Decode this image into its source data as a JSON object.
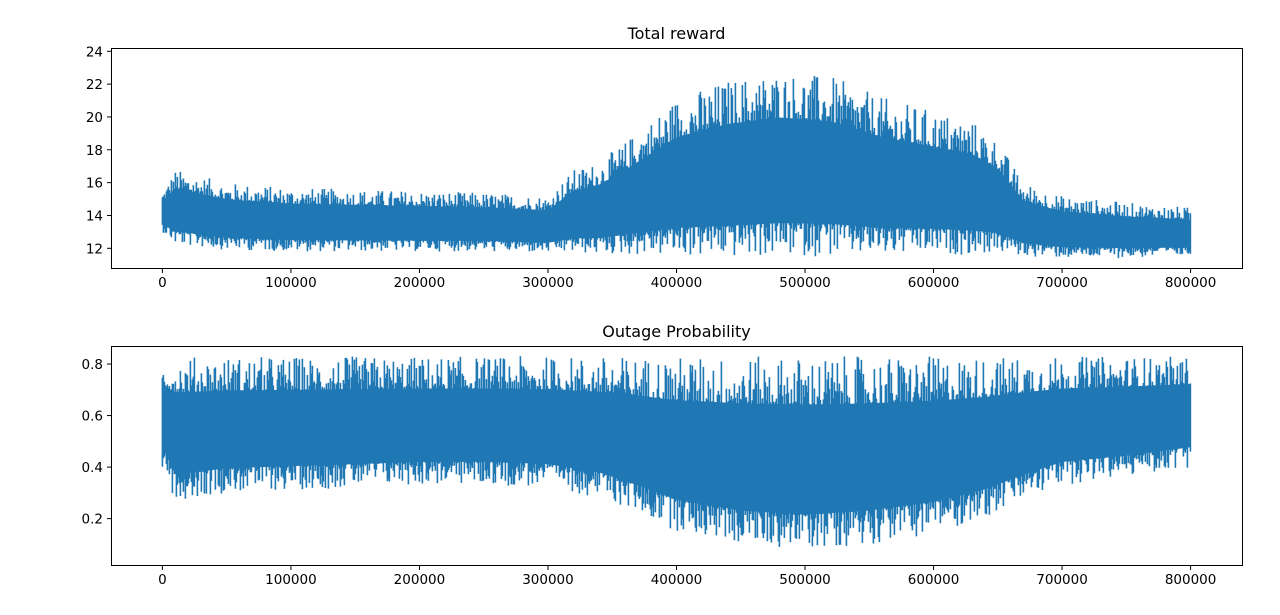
{
  "chart_data": [
    {
      "type": "line",
      "title": "Total reward",
      "xlabel": "",
      "ylabel": "",
      "xlim": [
        -40000,
        840000
      ],
      "ylim": [
        10.8,
        24.2
      ],
      "xticks": [
        0,
        100000,
        200000,
        300000,
        400000,
        500000,
        600000,
        700000,
        800000
      ],
      "xtick_labels": [
        "0",
        "100000",
        "200000",
        "300000",
        "400000",
        "500000",
        "600000",
        "700000",
        "800000"
      ],
      "yticks": [
        12,
        14,
        16,
        18,
        20,
        22,
        24
      ],
      "ytick_labels": [
        "12",
        "14",
        "16",
        "18",
        "20",
        "22",
        "24"
      ],
      "grid": false,
      "color": "#1f77b4",
      "envelope_x": [
        0,
        10000,
        50000,
        100000,
        150000,
        200000,
        250000,
        300000,
        320000,
        340000,
        360000,
        400000,
        440000,
        480000,
        520000,
        560000,
        600000,
        630000,
        650000,
        670000,
        700000,
        750000,
        800000
      ],
      "envelope_min": [
        13.0,
        12.2,
        11.9,
        11.8,
        11.8,
        11.8,
        11.8,
        11.7,
        11.7,
        11.6,
        11.6,
        11.5,
        11.4,
        11.5,
        11.5,
        11.5,
        11.6,
        11.6,
        11.7,
        11.5,
        11.4,
        11.4,
        11.5
      ],
      "envelope_max": [
        15.5,
        16.8,
        16.0,
        15.7,
        15.6,
        15.5,
        15.4,
        15.2,
        16.8,
        17.3,
        18.5,
        21.2,
        22.3,
        22.8,
        22.5,
        21.2,
        20.4,
        19.8,
        18.6,
        16.0,
        15.2,
        14.8,
        14.5
      ]
    },
    {
      "type": "line",
      "title": "Outage Probability",
      "xlabel": "",
      "ylabel": "",
      "xlim": [
        -40000,
        840000
      ],
      "ylim": [
        0.02,
        0.87
      ],
      "xticks": [
        0,
        100000,
        200000,
        300000,
        400000,
        500000,
        600000,
        700000,
        800000
      ],
      "xtick_labels": [
        "0",
        "100000",
        "200000",
        "300000",
        "400000",
        "500000",
        "600000",
        "700000",
        "800000"
      ],
      "yticks": [
        0.2,
        0.4,
        0.6,
        0.8
      ],
      "ytick_labels": [
        "0.2",
        "0.4",
        "0.6",
        "0.8"
      ],
      "grid": false,
      "color": "#1f77b4",
      "envelope_x": [
        0,
        10000,
        50000,
        100000,
        150000,
        200000,
        250000,
        300000,
        340000,
        370000,
        400000,
        450000,
        500000,
        550000,
        600000,
        640000,
        670000,
        700000,
        750000,
        800000
      ],
      "envelope_min": [
        0.4,
        0.27,
        0.3,
        0.31,
        0.32,
        0.33,
        0.33,
        0.32,
        0.28,
        0.22,
        0.15,
        0.1,
        0.08,
        0.1,
        0.14,
        0.2,
        0.27,
        0.33,
        0.36,
        0.4
      ],
      "envelope_max": [
        0.83,
        0.83,
        0.83,
        0.83,
        0.83,
        0.83,
        0.83,
        0.83,
        0.83,
        0.83,
        0.83,
        0.83,
        0.83,
        0.83,
        0.83,
        0.83,
        0.83,
        0.83,
        0.83,
        0.83
      ]
    }
  ]
}
